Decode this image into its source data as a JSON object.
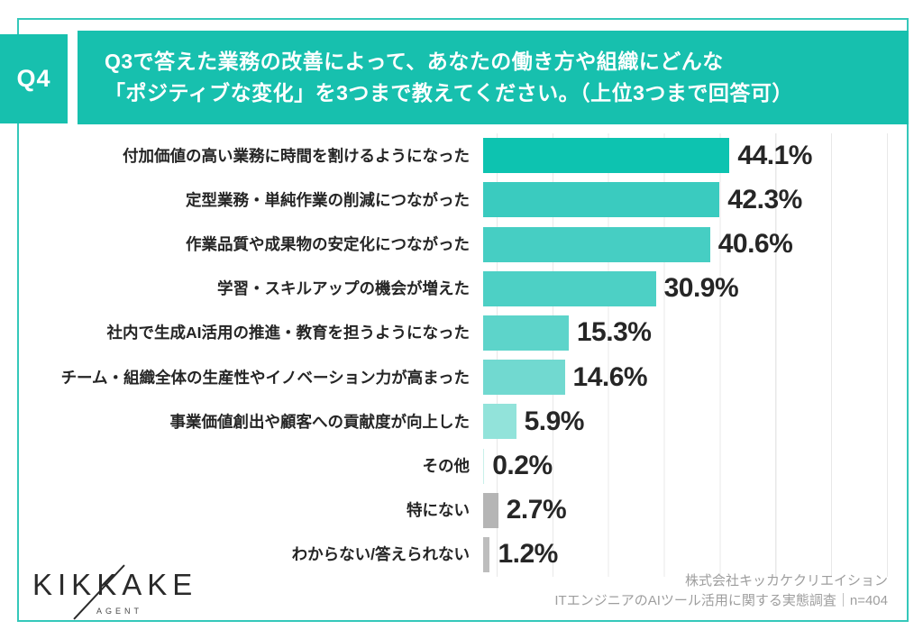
{
  "header": {
    "badge": "Q4",
    "title_line1": "Q3で答えた業務の改善によって、あなたの働き方や組織にどんな",
    "title_line2": "「ポジティブな変化」を3つまで教えてください。（上位3つまで回答可）"
  },
  "chart_data": {
    "type": "bar",
    "orientation": "horizontal",
    "title": "Q3で答えた業務の改善によって、あなたの働き方や組織にどんな「ポジティブな変化」を3つまで教えてください。（上位3つまで回答可）",
    "categories": [
      "付加価値の高い業務に時間を割けるようになった",
      "定型業務・単純作業の削減につながった",
      "作業品質や成果物の安定化につながった",
      "学習・スキルアップの機会が増えた",
      "社内で生成AI活用の推進・教育を担うようになった",
      "チーム・組織全体の生産性やイノベーション力が高まった",
      "事業価値創出や顧客への貢献度が向上した",
      "その他",
      "特にない",
      "わからない/答えられない"
    ],
    "values": [
      44.1,
      42.3,
      40.6,
      30.9,
      15.3,
      14.6,
      5.9,
      0.2,
      2.7,
      1.2
    ],
    "display_values": [
      "44.1%",
      "42.3%",
      "40.6%",
      "30.9%",
      "15.3%",
      "14.6%",
      "5.9%",
      "0.2%",
      "2.7%",
      "1.2%"
    ],
    "bar_colors": [
      "#0dc3b0",
      "#3acbbf",
      "#46cec3",
      "#4dd0c5",
      "#5dd4ca",
      "#71d9d0",
      "#92e3da",
      "#c9f0ea",
      "#b5b5b5",
      "#bdbdbd"
    ],
    "xlim": [
      0,
      70
    ],
    "gridline_interval": 10,
    "grid": true,
    "value_suffix": "%",
    "legend": "none"
  },
  "footer": {
    "logo_text": "KIKKAKE",
    "logo_subtext": "AGENT",
    "source_line1": "株式会社キッカケクリエイション",
    "source_line2": "ITエンジニアのAIツール活用に関する実態調査｜n=404"
  },
  "colors": {
    "accent": "#17c0ae",
    "frame": "#35c8ba",
    "grid": "#e8e8e8",
    "text_dark": "#262626",
    "text_gray": "#9e9e9e"
  }
}
